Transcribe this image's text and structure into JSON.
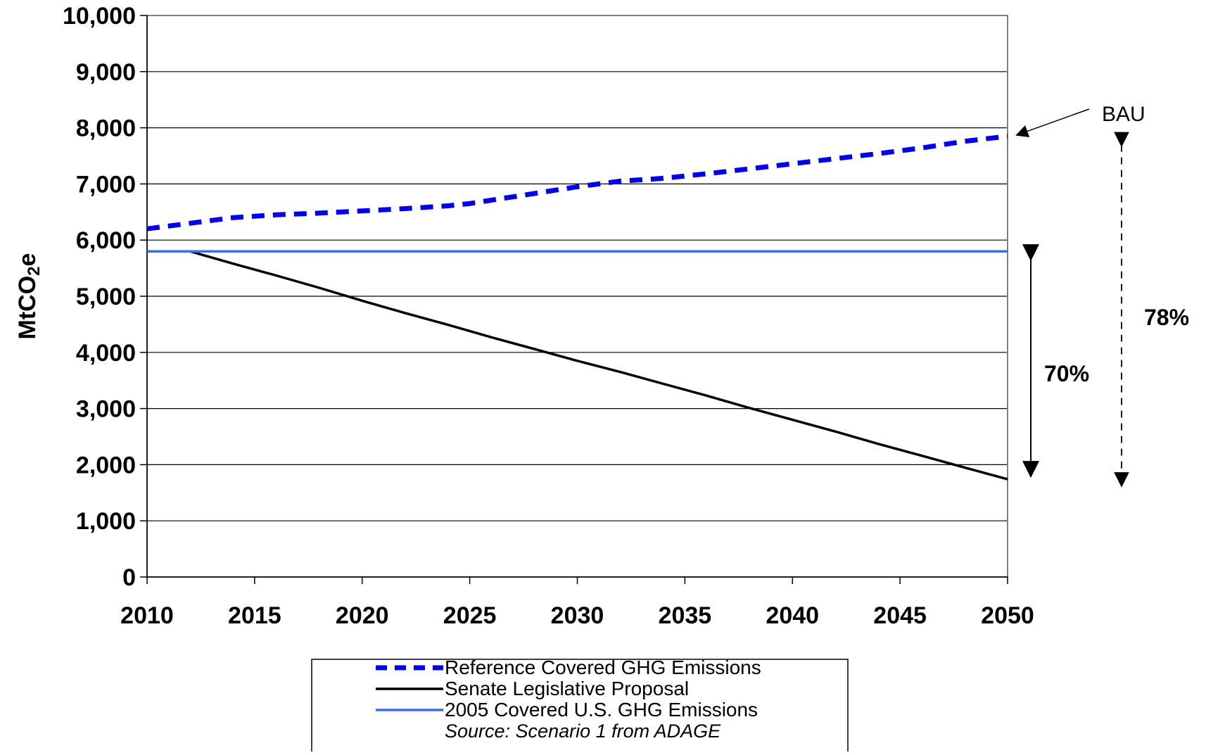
{
  "chart_data": {
    "type": "line",
    "title": "",
    "xlabel": "",
    "ylabel": "MtCO",
    "ylabel_sub": "2",
    "ylabel_suffix": "e",
    "xlim": [
      2010,
      2050
    ],
    "ylim": [
      0,
      10000
    ],
    "grid": true,
    "x_ticks": [
      2010,
      2015,
      2020,
      2025,
      2030,
      2035,
      2040,
      2045,
      2050
    ],
    "x_tick_labels": [
      "2010",
      "2015",
      "2020",
      "2025",
      "2030",
      "2035",
      "2040",
      "2045",
      "2050"
    ],
    "y_ticks": [
      0,
      1000,
      2000,
      3000,
      4000,
      5000,
      6000,
      7000,
      8000,
      9000,
      10000
    ],
    "y_tick_labels": [
      "0",
      "1,000",
      "2,000",
      "3,000",
      "4,000",
      "5,000",
      "6,000",
      "7,000",
      "8,000",
      "9,000",
      "10,000"
    ],
    "series": [
      {
        "name": "Reference Covered GHG Emissions",
        "color": "#0000ee",
        "style": "dashed",
        "x": [
          2010,
          2012,
          2014,
          2016,
          2018,
          2020,
          2022,
          2024,
          2025,
          2026,
          2028,
          2030,
          2032,
          2034,
          2036,
          2038,
          2040,
          2042,
          2044,
          2046,
          2048,
          2050
        ],
        "y": [
          6200,
          6300,
          6400,
          6450,
          6480,
          6520,
          6560,
          6610,
          6650,
          6710,
          6830,
          6950,
          7050,
          7100,
          7180,
          7270,
          7360,
          7450,
          7540,
          7640,
          7760,
          7850
        ]
      },
      {
        "name": "Senate Legislative Proposal",
        "color": "#000000",
        "style": "solid",
        "x": [
          2012,
          2014,
          2016,
          2018,
          2020,
          2022,
          2024,
          2026,
          2028,
          2030,
          2032,
          2034,
          2036,
          2038,
          2040,
          2042,
          2044,
          2046,
          2048,
          2050
        ],
        "y": [
          5800,
          5580,
          5370,
          5150,
          4920,
          4700,
          4490,
          4270,
          4060,
          3850,
          3650,
          3440,
          3230,
          3010,
          2800,
          2590,
          2370,
          2160,
          1950,
          1740
        ]
      },
      {
        "name": "2005 Covered U.S. GHG Emissions",
        "color": "#3a6cf0",
        "style": "solid",
        "x": [
          2010,
          2050
        ],
        "y": [
          5800,
          5800
        ]
      }
    ],
    "annotations": [
      {
        "text": "BAU"
      },
      {
        "text": "70%"
      },
      {
        "text": "78%"
      }
    ],
    "legend": {
      "position": "bottom",
      "source": "Source: Scenario 1 from ADAGE"
    }
  }
}
